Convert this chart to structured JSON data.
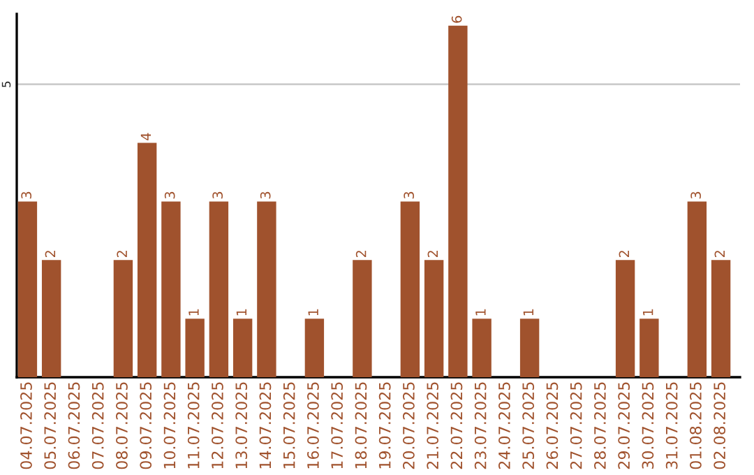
{
  "chart_data": {
    "type": "bar",
    "categories": [
      "04.07.2025",
      "05.07.2025",
      "06.07.2025",
      "07.07.2025",
      "08.07.2025",
      "09.07.2025",
      "10.07.2025",
      "11.07.2025",
      "12.07.2025",
      "13.07.2025",
      "14.07.2025",
      "15.07.2025",
      "16.07.2025",
      "17.07.2025",
      "18.07.2025",
      "19.07.2025",
      "20.07.2025",
      "21.07.2025",
      "22.07.2025",
      "23.07.2025",
      "24.07.2025",
      "25.07.2025",
      "26.07.2025",
      "27.07.2025",
      "28.07.2025",
      "29.07.2025",
      "30.07.2025",
      "31.07.2025",
      "01.08.2025",
      "02.08.2025"
    ],
    "values": [
      3,
      2,
      0,
      0,
      2,
      4,
      3,
      1,
      3,
      1,
      3,
      0,
      1,
      0,
      2,
      0,
      3,
      2,
      6,
      1,
      0,
      1,
      0,
      0,
      0,
      2,
      1,
      0,
      3,
      2
    ],
    "value_labels": [
      "3",
      "2",
      null,
      null,
      "2",
      "4",
      "3",
      "1",
      "3",
      "1",
      "3",
      null,
      "1",
      null,
      "2",
      null,
      "3",
      "2",
      "6",
      "1",
      null,
      "1",
      null,
      null,
      null,
      "2",
      "1",
      null,
      "3",
      "2"
    ],
    "color": "#a0522d",
    "ylim": [
      0,
      6.2
    ],
    "yticks": [
      5
    ],
    "grid": "y",
    "legend": false
  }
}
